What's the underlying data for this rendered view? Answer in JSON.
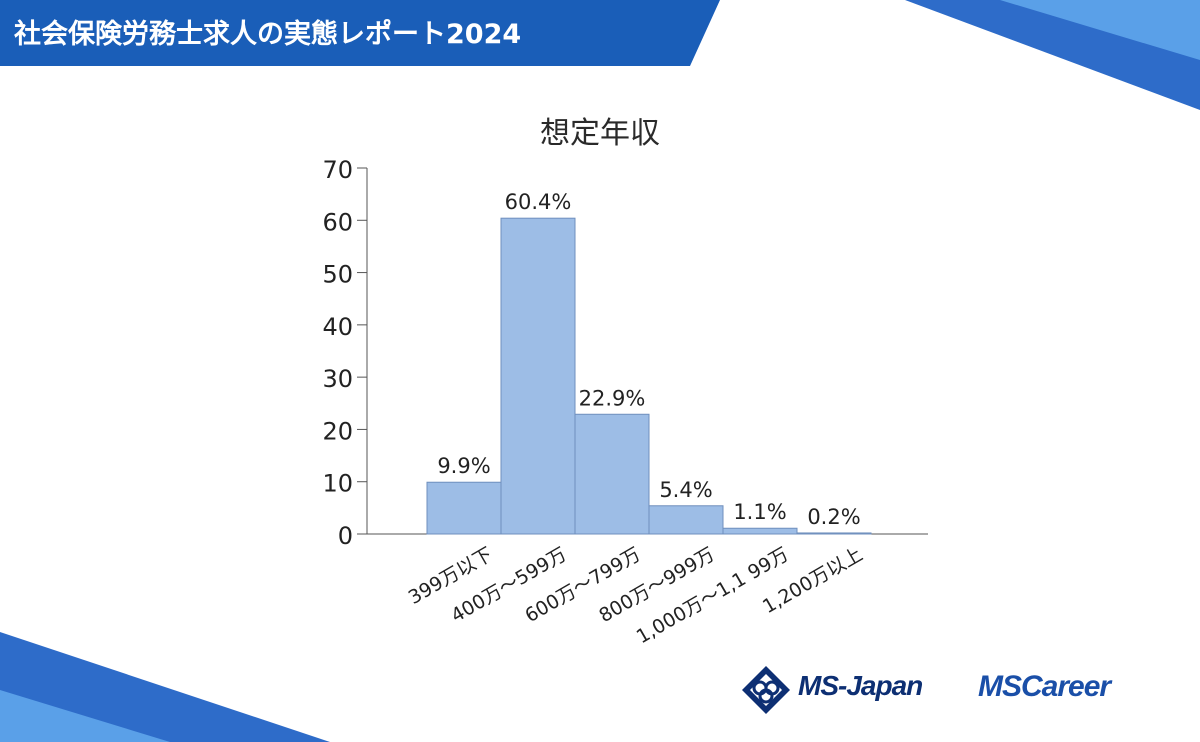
{
  "header": {
    "title": "社会保険労務士求人の実態レポート2024"
  },
  "brand": {
    "logo_primary": "MS-Japan",
    "logo_secondary": "MSCareer",
    "accent_color": "#1a5eb8",
    "bar_color": "#9dbde6"
  },
  "chart_data": {
    "type": "bar",
    "title": "想定年収",
    "categories": [
      "399万以下",
      "400万～599万",
      "600万～799万",
      "800万～999万",
      "1,000万～1,1 99万",
      "1,200万以上"
    ],
    "values": [
      9.9,
      60.4,
      22.9,
      5.4,
      1.1,
      0.2
    ],
    "value_labels": [
      "9.9%",
      "60.4%",
      "22.9%",
      "5.4%",
      "1.1%",
      "0.2%"
    ],
    "ylim": [
      0,
      70
    ],
    "yticks": [
      "0",
      "10",
      "20",
      "30",
      "40",
      "50",
      "60",
      "70"
    ],
    "grid": false,
    "legend": "none"
  }
}
